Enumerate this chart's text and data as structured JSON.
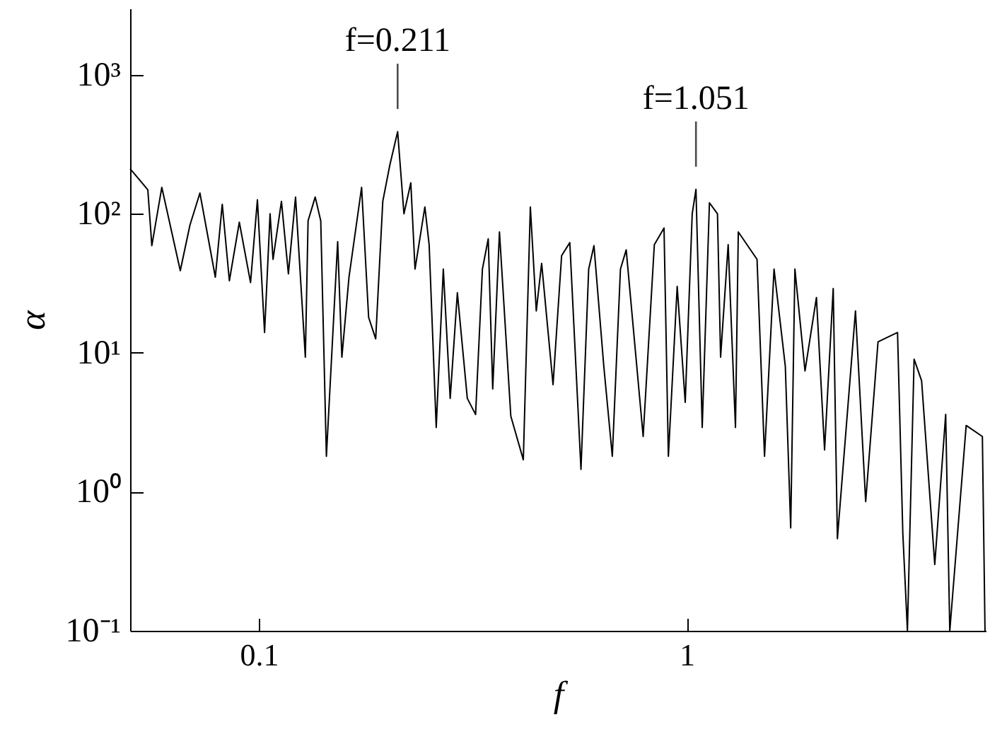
{
  "chart_data": {
    "type": "line",
    "xlabel": "f",
    "ylabel": "α",
    "log": "xy",
    "grid": false,
    "xlim": [
      0.05,
      5
    ],
    "xticks": [
      0.1,
      1
    ],
    "ylim": [
      0.1,
      3000
    ],
    "yticks": [
      {
        "value": 0.1,
        "label": "10⁻¹"
      },
      {
        "value": 1,
        "label": "10⁰"
      },
      {
        "value": 10,
        "label": "10¹"
      },
      {
        "value": 100,
        "label": "10²"
      },
      {
        "value": 1000,
        "label": "10³"
      }
    ],
    "annotations": [
      {
        "text": "f=0.211",
        "x": 0.211,
        "y": 390
      },
      {
        "text": "f=1.051",
        "x": 1.051,
        "y": 150
      }
    ],
    "series": [
      {
        "color": "#000000",
        "x": [
          0.05,
          0.055,
          0.0562,
          0.0593,
          0.0655,
          0.069,
          0.0728,
          0.0791,
          0.0821,
          0.0853,
          0.09,
          0.0956,
          0.0992,
          0.1031,
          0.1062,
          0.1079,
          0.1129,
          0.1172,
          0.1218,
          0.1284,
          0.1303,
          0.1354,
          0.1395,
          0.1438,
          0.1528,
          0.1563,
          0.1624,
          0.1738,
          0.1805,
          0.1875,
          0.1948,
          0.2023,
          0.211,
          0.2183,
          0.2265,
          0.2317,
          0.2443,
          0.25,
          0.2597,
          0.2698,
          0.28,
          0.291,
          0.307,
          0.321,
          0.333,
          0.3436,
          0.352,
          0.365,
          0.388,
          0.415,
          0.431,
          0.445,
          0.458,
          0.487,
          0.51,
          0.533,
          0.566,
          0.59,
          0.607,
          0.64,
          0.67,
          0.7,
          0.722,
          0.791,
          0.84,
          0.885,
          0.906,
          0.95,
          0.992,
          1.03,
          1.051,
          1.087,
          1.13,
          1.18,
          1.2,
          1.25,
          1.3,
          1.32,
          1.46,
          1.52,
          1.6,
          1.7,
          1.75,
          1.79,
          1.89,
          2.01,
          2.1,
          2.2,
          2.25,
          2.48,
          2.62,
          2.8,
          3.11,
          3.2,
          3.28,
          3.4,
          3.54,
          3.8,
          4.03,
          4.12,
          4.5,
          4.91,
          4.98
        ],
        "values": [
          211,
          149,
          59,
          155,
          39,
          83,
          141,
          35,
          117,
          33,
          87,
          32,
          126,
          14,
          100,
          47,
          123,
          37,
          132,
          9.3,
          89,
          132,
          89,
          1.8,
          63,
          9.3,
          35,
          155,
          18,
          12.6,
          123,
          224,
          390,
          100,
          167,
          40,
          112,
          60,
          2.9,
          40,
          4.7,
          27,
          4.7,
          3.6,
          40,
          66,
          5.5,
          74,
          3.5,
          1.7,
          112,
          20,
          44,
          5.9,
          50,
          62,
          1.45,
          40,
          59,
          8,
          1.8,
          40,
          55,
          2.5,
          60,
          79,
          1.8,
          30,
          4.4,
          100,
          150,
          2.9,
          120,
          100,
          9.3,
          60,
          2.9,
          74,
          47,
          1.8,
          40,
          8,
          0.55,
          40,
          7.4,
          25,
          2,
          29,
          0.46,
          20,
          0.85,
          12,
          14,
          0.5,
          0.1,
          9,
          6.3,
          0.3,
          3.6,
          0.1,
          3,
          2.5,
          0.1
        ]
      }
    ]
  }
}
